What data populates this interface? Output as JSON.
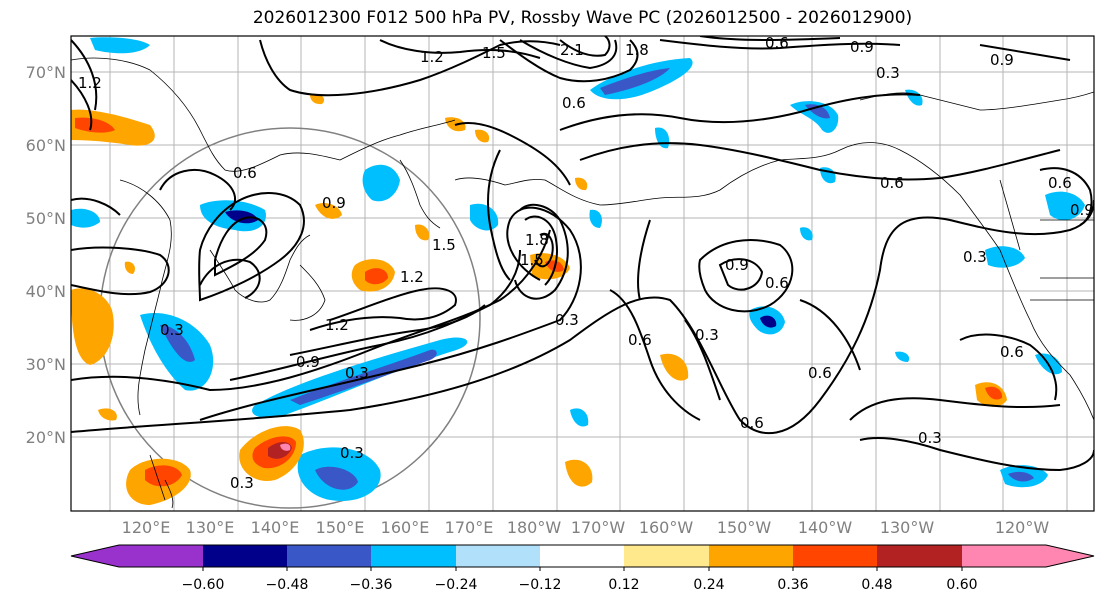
{
  "title": "2026012300 F012 500 hPa PV, Rossby Wave PC (2026012500 - 2026012900)",
  "lat_labels": [
    "70°N",
    "60°N",
    "50°N",
    "40°N",
    "30°N",
    "20°N"
  ],
  "lon_labels": [
    "120°E",
    "130°E",
    "140°E",
    "150°E",
    "160°E",
    "170°E",
    "180°W",
    "170°W",
    "160°W",
    "150°W",
    "140°W",
    "130°W",
    "120°W"
  ],
  "contour_labels": [
    "0.6",
    "1.2",
    "1.5",
    "2.1",
    "1.8",
    "0.6",
    "0.9",
    "0.3",
    "0.9",
    "1.2",
    "0.6",
    "0.9",
    "1.5",
    "1.2",
    "0.3",
    "1.2",
    "0.9",
    "0.3",
    "0.3",
    "1.8",
    "1.5",
    "0.9",
    "0.6",
    "0.3",
    "0.6",
    "0.6",
    "0.3",
    "0.6",
    "0.3",
    "0.6",
    "0.3",
    "0.6",
    "0.3",
    "0.9",
    "0.6"
  ],
  "colorbar": {
    "colors": [
      "#9932cc",
      "#00008b",
      "#3a57c8",
      "#00bfff",
      "#b0e0fa",
      "#ffffff",
      "#ffe98c",
      "#ffa500",
      "#ff4500",
      "#b22222",
      "#ff86b1"
    ],
    "ticks": [
      "−0.60",
      "−0.48",
      "−0.36",
      "−0.24",
      "−0.12",
      "0.12",
      "0.24",
      "0.36",
      "0.48",
      "0.60"
    ]
  }
}
